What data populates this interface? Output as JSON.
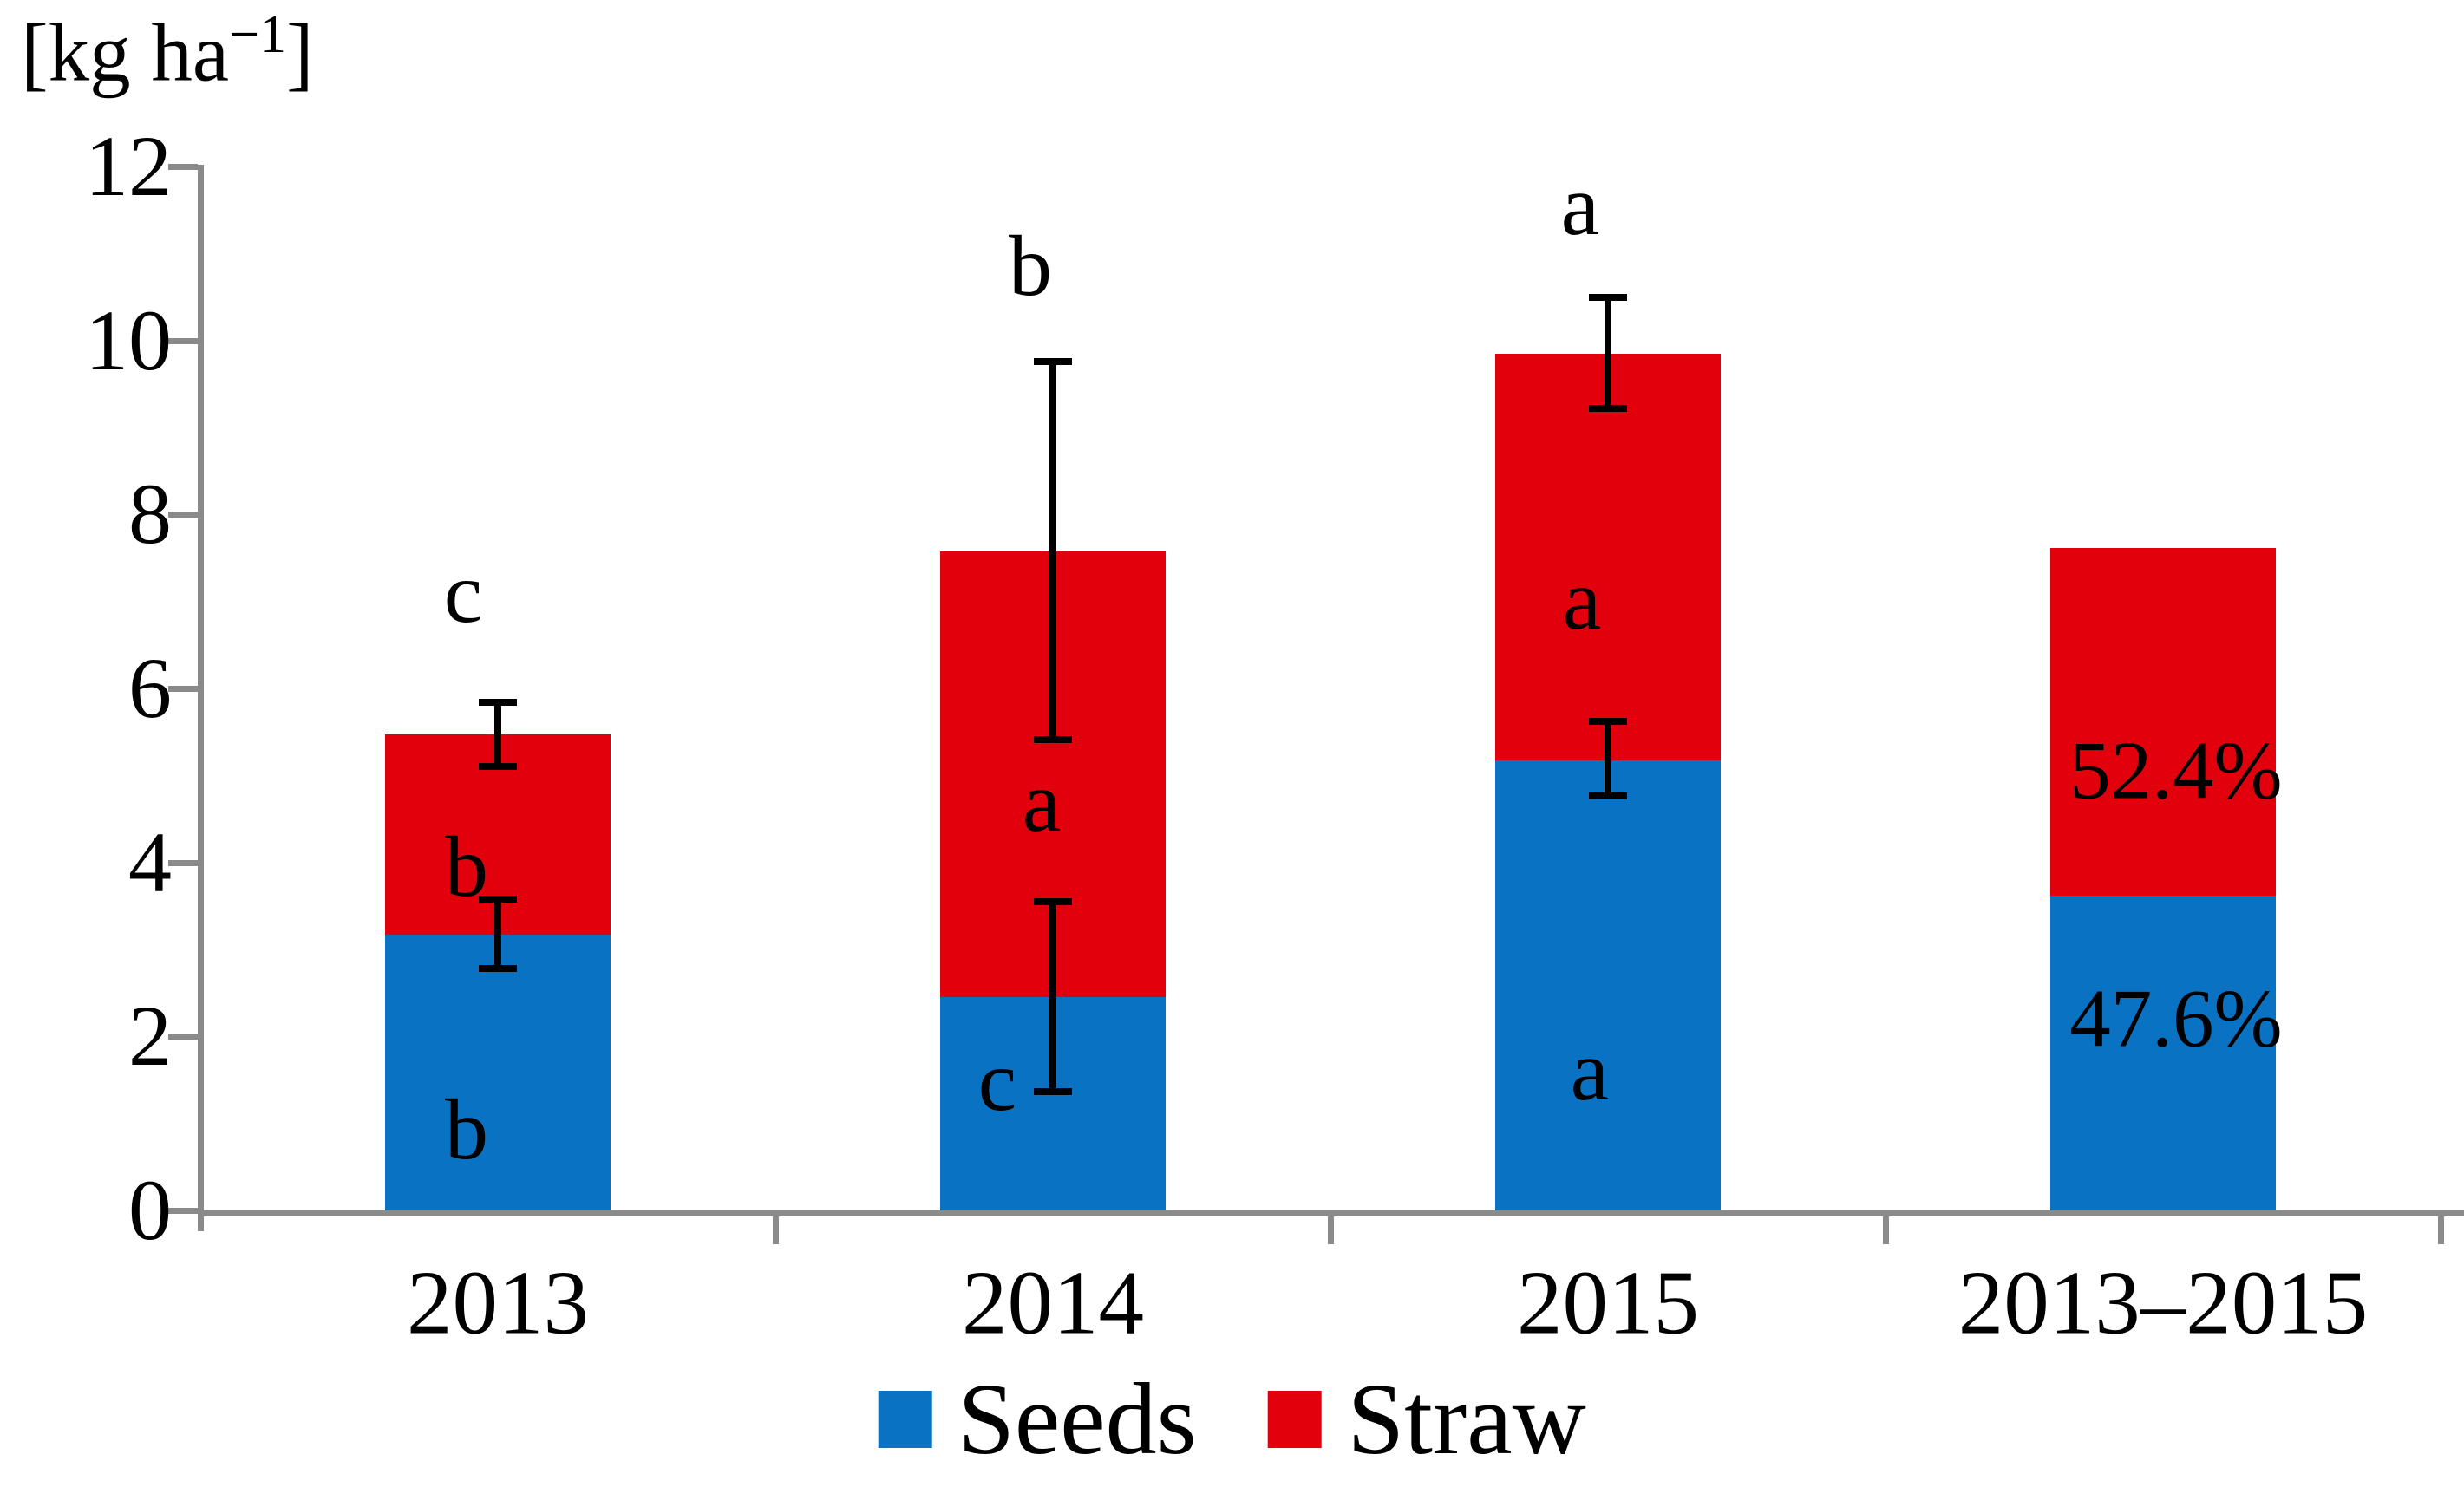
{
  "unit_label": {
    "prefix": "[kg ha",
    "superscript": "−1",
    "suffix": "]"
  },
  "colors": {
    "seeds": "#0a72c2",
    "straw": "#e2000c",
    "axis": "#8a8a8a",
    "annotation": "#000000"
  },
  "y_axis": {
    "tick_values": [
      0,
      2,
      4,
      6,
      8,
      10,
      12
    ],
    "tick_labels": [
      "0",
      "2",
      "4",
      "6",
      "8",
      "10",
      "12"
    ]
  },
  "legend": {
    "items": [
      {
        "label": "Seeds",
        "color": "#0a72c2"
      },
      {
        "label": "Straw",
        "color": "#e2000c"
      }
    ]
  },
  "bars": [
    {
      "category": "2013",
      "seeds": 3.17,
      "straw": 2.3,
      "total": 5.47,
      "err_total": {
        "lo": 5.1,
        "hi": 5.84
      },
      "err_seeds": {
        "lo": 2.78,
        "hi": 3.58
      },
      "letters": {
        "top": {
          "text": "c",
          "y": 7.1,
          "dx": -40
        },
        "straw": {
          "text": "b",
          "y": 3.95,
          "dx": -36
        },
        "seeds": {
          "text": "b",
          "y": 0.93,
          "dx": -36
        }
      }
    },
    {
      "category": "2014",
      "seeds": 2.45,
      "straw": 5.12,
      "total": 7.57,
      "err_total": {
        "lo": 5.41,
        "hi": 9.76
      },
      "err_seeds": {
        "lo": 1.37,
        "hi": 3.55
      },
      "letters": {
        "top": {
          "text": "b",
          "y": 10.85,
          "dx": -26
        },
        "straw": {
          "text": "a",
          "y": 4.69,
          "dx": -13
        },
        "seeds": {
          "text": "c",
          "y": 1.49,
          "dx": -64
        }
      }
    },
    {
      "category": "2015",
      "seeds": 5.17,
      "straw": 4.67,
      "total": 9.84,
      "err_total": {
        "lo": 9.22,
        "hi": 10.5
      },
      "err_seeds": {
        "lo": 4.76,
        "hi": 5.62
      },
      "letters": {
        "top": {
          "text": "a",
          "y": 11.55,
          "dx": -32
        },
        "straw": {
          "text": "a",
          "y": 7.02,
          "dx": -30
        },
        "seeds": {
          "text": "a",
          "y": 1.6,
          "dx": -21
        }
      }
    },
    {
      "category": "2013–2015",
      "seeds": 3.62,
      "straw": 4.0,
      "total": 7.62,
      "value_labels": {
        "straw": {
          "text": "52.4%",
          "y": 5.05,
          "dx": 15
        },
        "seeds": {
          "text": "47.6%",
          "y": 2.2,
          "dx": 15
        }
      }
    }
  ],
  "chart_data": {
    "type": "bar",
    "stacked": true,
    "title": "",
    "ylabel": "[kg ha−1]",
    "xlabel": "",
    "ylim": [
      0,
      12
    ],
    "y_ticks": [
      0,
      2,
      4,
      6,
      8,
      10,
      12
    ],
    "grid": false,
    "legend_position": "bottom",
    "categories": [
      "2013",
      "2014",
      "2015",
      "2013–2015"
    ],
    "series": [
      {
        "name": "Seeds",
        "color": "#0a72c2",
        "values": [
          3.17,
          2.45,
          5.17,
          3.62
        ]
      },
      {
        "name": "Straw",
        "color": "#e2000c",
        "values": [
          2.3,
          5.12,
          4.67,
          4.0
        ]
      }
    ],
    "totals": [
      5.47,
      7.57,
      9.84,
      7.62
    ],
    "error_bars": {
      "seeds_top": [
        {
          "lo": 2.78,
          "hi": 3.58
        },
        {
          "lo": 1.37,
          "hi": 3.55
        },
        {
          "lo": 4.76,
          "hi": 5.62
        },
        null
      ],
      "total_top": [
        {
          "lo": 5.1,
          "hi": 5.84
        },
        {
          "lo": 5.41,
          "hi": 9.76
        },
        {
          "lo": 9.22,
          "hi": 10.5
        },
        null
      ]
    },
    "significance_letters": {
      "total": [
        "c",
        "b",
        "a",
        null
      ],
      "straw": [
        "b",
        "a",
        "a",
        null
      ],
      "seeds": [
        "b",
        "c",
        "a",
        null
      ]
    },
    "annotations": [
      "52.4%",
      "47.6%"
    ]
  }
}
